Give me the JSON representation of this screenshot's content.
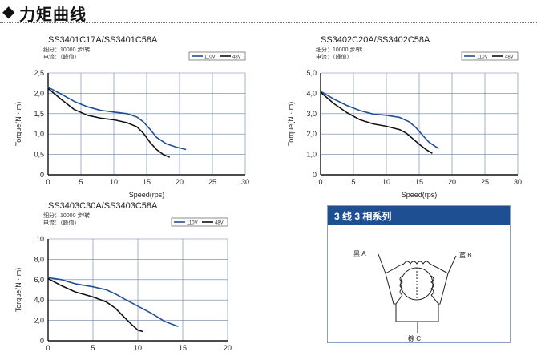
{
  "header": {
    "diamond_icon": "◆",
    "title": "力矩曲线"
  },
  "colors": {
    "s110": "#1f4f93",
    "s48": "#111111",
    "grid": "#6b7fa5",
    "axis": "#111111"
  },
  "chart_data": [
    {
      "type": "line",
      "title": "SS3401C17A/SS3401C58A",
      "subtitle_1": "细分：10000 步/转",
      "subtitle_2": "电流：（峰值）",
      "xlabel": "Speed(rps)",
      "ylabel": "Torque(N · m)",
      "xlim": [
        0,
        30
      ],
      "ylim": [
        0,
        2.5
      ],
      "xticks": [
        0,
        5,
        10,
        15,
        20,
        25,
        30
      ],
      "yticks": [
        0,
        0.5,
        1.0,
        1.5,
        2.0,
        2.5
      ],
      "yticklabels": [
        "0",
        "0,5",
        "1,0",
        "1,5",
        "2,0",
        "2,5"
      ],
      "legend": [
        "110V",
        "48V"
      ],
      "series": [
        {
          "name": "110V",
          "x": [
            0,
            2,
            4,
            6,
            8,
            10,
            12,
            13.5,
            14.5,
            15.5,
            16.5,
            18,
            19.5,
            21
          ],
          "y": [
            2.15,
            1.98,
            1.8,
            1.67,
            1.58,
            1.54,
            1.5,
            1.42,
            1.3,
            1.12,
            0.92,
            0.76,
            0.68,
            0.62
          ]
        },
        {
          "name": "48V",
          "x": [
            0,
            2,
            4,
            6,
            8,
            10,
            12,
            13.5,
            14.5,
            15.5,
            16.5,
            17.5,
            18.5
          ],
          "y": [
            2.12,
            1.85,
            1.6,
            1.46,
            1.39,
            1.35,
            1.28,
            1.18,
            1.02,
            0.8,
            0.62,
            0.5,
            0.43
          ]
        }
      ]
    },
    {
      "type": "line",
      "title": "SS3402C20A/SS3402C58A",
      "subtitle_1": "细分：10000 步/转",
      "subtitle_2": "电流：（峰值）",
      "xlabel": "Speed(rps)",
      "ylabel": "Torque(N · m)",
      "xlim": [
        0,
        30
      ],
      "ylim": [
        0,
        5
      ],
      "xticks": [
        0,
        5,
        10,
        15,
        20,
        25,
        30
      ],
      "yticks": [
        0,
        1,
        2,
        3,
        4,
        5
      ],
      "yticklabels": [
        "0",
        "1,0",
        "2,0",
        "3,0",
        "4,0",
        "5,0"
      ],
      "legend": [
        "110V",
        "48V"
      ],
      "series": [
        {
          "name": "110V",
          "x": [
            0,
            2,
            4,
            6,
            8,
            10,
            12,
            13.5,
            14.5,
            15.5,
            16.5,
            17.5,
            18
          ],
          "y": [
            4.1,
            3.72,
            3.4,
            3.15,
            2.98,
            2.92,
            2.82,
            2.6,
            2.32,
            1.95,
            1.6,
            1.38,
            1.3
          ]
        },
        {
          "name": "48V",
          "x": [
            0,
            2,
            4,
            6,
            8,
            10,
            12,
            13,
            14,
            15,
            16,
            17
          ],
          "y": [
            4.05,
            3.5,
            3.05,
            2.7,
            2.5,
            2.38,
            2.22,
            2.05,
            1.78,
            1.5,
            1.25,
            1.05
          ]
        }
      ]
    },
    {
      "type": "line",
      "title": "SS3403C30A/SS3403C58A",
      "subtitle_1": "细分：10000 步/转",
      "subtitle_2": "电流：（峰值）",
      "xlabel": "Speed(rps)",
      "ylabel": "Torque(N · m)",
      "xlim": [
        0,
        20
      ],
      "ylim": [
        0,
        10
      ],
      "xticks": [
        0,
        5,
        10,
        15,
        20
      ],
      "yticks": [
        0,
        2,
        4,
        6,
        8,
        10
      ],
      "yticklabels": [
        "0",
        "2,0",
        "4,0",
        "6,0",
        "8,0",
        "10"
      ],
      "legend": [
        "110V",
        "48V"
      ],
      "series": [
        {
          "name": "110V",
          "x": [
            0,
            1.5,
            3,
            5,
            6.5,
            7.5,
            8.5,
            10,
            11.5,
            13,
            14.5
          ],
          "y": [
            6.2,
            6.0,
            5.6,
            5.3,
            5.0,
            4.6,
            4.1,
            3.4,
            2.7,
            1.9,
            1.4
          ]
        },
        {
          "name": "48V",
          "x": [
            0,
            1.5,
            3,
            5,
            6.5,
            7.5,
            8.5,
            9.3,
            10,
            10.6
          ],
          "y": [
            6.1,
            5.4,
            4.8,
            4.3,
            3.8,
            3.2,
            2.3,
            1.6,
            1.05,
            0.9
          ]
        }
      ]
    }
  ],
  "wiring": {
    "title": "3 线 3 相系列",
    "lead_a": "黑 A",
    "lead_b": "蓝 B",
    "lead_c": "棕 C"
  }
}
